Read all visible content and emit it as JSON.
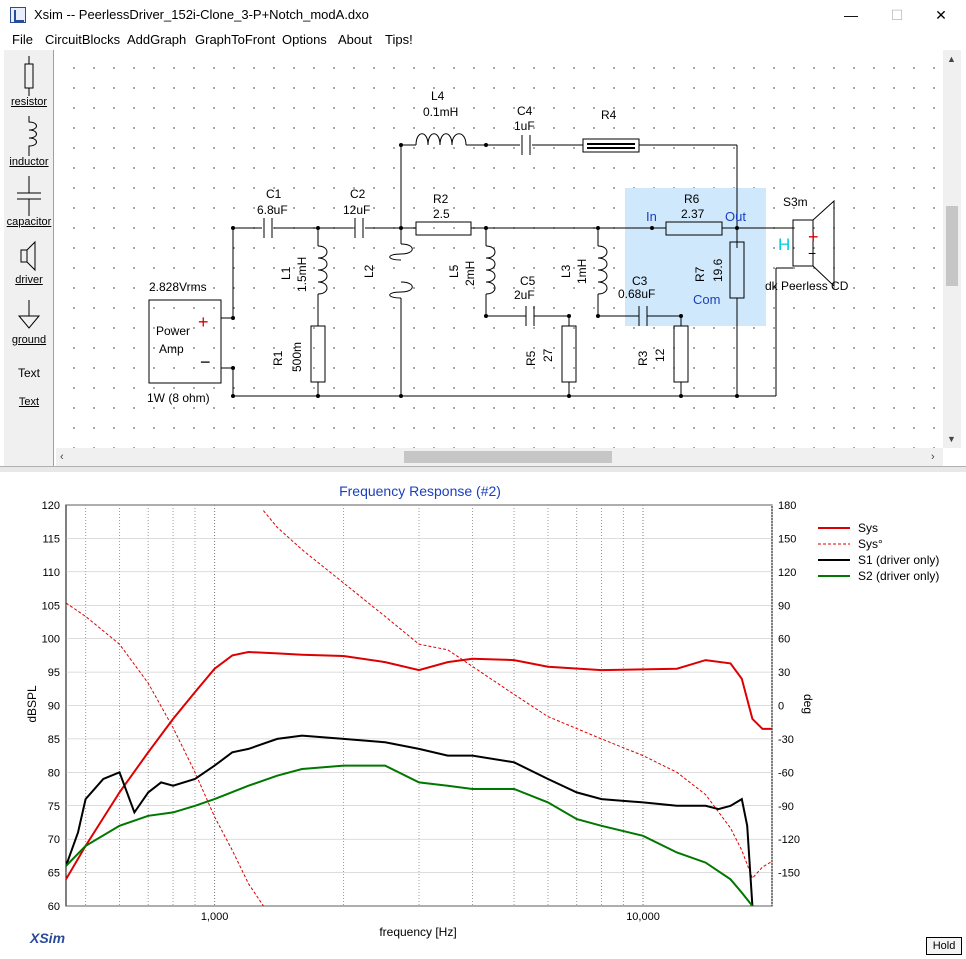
{
  "window": {
    "title": "Xsim -- PeerlessDriver_152i-Clone_3-P+Notch_modA.dxo",
    "minimize": "—",
    "maximize": "☐",
    "close": "✕"
  },
  "menu": [
    "File",
    "CircuitBlocks",
    "AddGraph",
    "GraphToFront",
    "Options",
    "About",
    "Tips!"
  ],
  "toolbox": {
    "resistor": "resistor",
    "inductor": "inductor",
    "capacitor": "capacitor",
    "driver": "driver",
    "ground": "ground",
    "text_icon": "Text",
    "text": "Text"
  },
  "schematic": {
    "source_voltage": "2.828Vrms",
    "source_label1": "Power",
    "source_label2": "Amp",
    "source_power": "1W (8 ohm)",
    "C1": {
      "name": "C1",
      "value": "6.8uF"
    },
    "C2": {
      "name": "C2",
      "value": "12uF"
    },
    "L1": {
      "name": "L1",
      "value": "1.5mH"
    },
    "L2": {
      "name": "L2"
    },
    "R1": {
      "name": "R1",
      "value": "500m"
    },
    "L4": {
      "name": "L4",
      "value": "0.1mH"
    },
    "C4": {
      "name": "C4",
      "value": "1uF"
    },
    "R4": {
      "name": "R4"
    },
    "R2": {
      "name": "R2",
      "value": "2.5"
    },
    "L5": {
      "name": "L5",
      "value": "2mH"
    },
    "C5": {
      "name": "C5",
      "value": "2uF"
    },
    "R5": {
      "name": "R5",
      "value": "27"
    },
    "L3": {
      "name": "L3",
      "value": "1mH"
    },
    "C3": {
      "name": "C3",
      "value": "0.68uF"
    },
    "R3": {
      "name": "R3",
      "value": "12"
    },
    "R6": {
      "name": "R6",
      "value": "2.37"
    },
    "R7": {
      "name": "R7",
      "value": "19.6"
    },
    "lpad_in": "In",
    "lpad_out": "Out",
    "lpad_com": "Com",
    "driver_name": "S3m",
    "driver_h": "H",
    "driver_desc": "dk Peerless CD"
  },
  "chart_data": {
    "type": "line",
    "title": "Frequency Response (#2)",
    "xlabel": "frequency [Hz]",
    "ylabel": "dBSPL",
    "y2label": "deg",
    "x_scale": "log",
    "xlim": [
      450,
      20000
    ],
    "ylim": [
      60,
      120
    ],
    "y2lim": [
      -180,
      180
    ],
    "x_ticks": [
      1000,
      10000
    ],
    "x_tick_labels": [
      "1,000",
      "10,000"
    ],
    "y_ticks": [
      120,
      115,
      110,
      105,
      100,
      95,
      90,
      85,
      80,
      75,
      70,
      65,
      60
    ],
    "y2_ticks": [
      180,
      150,
      120,
      90,
      60,
      30,
      0,
      -30,
      -60,
      -90,
      -120,
      -150
    ],
    "grid": true,
    "legend_position": "right",
    "series": [
      {
        "name": "Sys",
        "color": "#dd0000",
        "axis": "left",
        "style": "solid",
        "x": [
          450,
          500,
          600,
          700,
          800,
          900,
          1000,
          1100,
          1200,
          1400,
          1600,
          2000,
          2500,
          3000,
          3500,
          4000,
          5000,
          6000,
          8000,
          10000,
          12000,
          14000,
          16000,
          17000,
          18000,
          19000,
          20000
        ],
        "y": [
          64,
          69,
          77,
          83,
          88,
          92,
          95.5,
          97.5,
          98,
          97.8,
          97.6,
          97.4,
          96.5,
          95.3,
          96.5,
          97,
          96.8,
          95.8,
          95.3,
          95.4,
          95.5,
          96.8,
          96.3,
          94,
          88,
          86.5,
          86.5
        ]
      },
      {
        "name": "Sys°",
        "color": "#dd0000",
        "axis": "right",
        "style": "dashed",
        "x": [
          450,
          500,
          600,
          700,
          800,
          900,
          1000,
          1100,
          1200,
          1290,
          1300,
          1400,
          1600,
          2000,
          2500,
          3000,
          3500,
          4000,
          5000,
          6000,
          8000,
          10000,
          12000,
          14000,
          16000,
          17000,
          18000,
          19000,
          20000
        ],
        "y": [
          92,
          80,
          55,
          20,
          -20,
          -60,
          -100,
          -130,
          -160,
          -178,
          175,
          160,
          140,
          110,
          80,
          55,
          50,
          35,
          10,
          -10,
          -30,
          -45,
          -60,
          -80,
          -110,
          -130,
          -155,
          -145,
          -140
        ]
      },
      {
        "name": "S1 (driver only)",
        "color": "#000000",
        "axis": "left",
        "style": "solid",
        "x": [
          450,
          480,
          500,
          550,
          600,
          650,
          700,
          750,
          800,
          900,
          1000,
          1100,
          1200,
          1400,
          1600,
          2000,
          2500,
          3000,
          3500,
          4000,
          5000,
          6000,
          7000,
          8000,
          10000,
          12000,
          14000,
          15000,
          16000,
          17000,
          17500,
          18000
        ],
        "y": [
          66,
          71,
          76,
          79,
          80,
          74,
          77,
          78.5,
          78,
          79,
          81,
          83,
          83.5,
          85,
          85.5,
          85,
          84.5,
          83.5,
          82.5,
          82.5,
          81.5,
          79,
          77,
          76,
          75.5,
          75,
          75,
          74.5,
          75,
          76,
          72,
          60
        ]
      },
      {
        "name": "S2 (driver only)",
        "color": "#007700",
        "axis": "left",
        "style": "solid",
        "x": [
          450,
          500,
          600,
          700,
          800,
          900,
          1000,
          1200,
          1400,
          1600,
          2000,
          2500,
          3000,
          3500,
          4000,
          5000,
          6000,
          7000,
          8000,
          10000,
          12000,
          14000,
          16000,
          17000,
          18000
        ],
        "y": [
          66,
          69,
          72,
          73.5,
          74,
          75,
          76,
          78,
          79.5,
          80.5,
          81,
          81,
          78.5,
          78,
          77.5,
          77.5,
          75.5,
          73,
          72,
          70.5,
          68,
          66.5,
          64,
          62,
          60
        ]
      }
    ]
  }
}
